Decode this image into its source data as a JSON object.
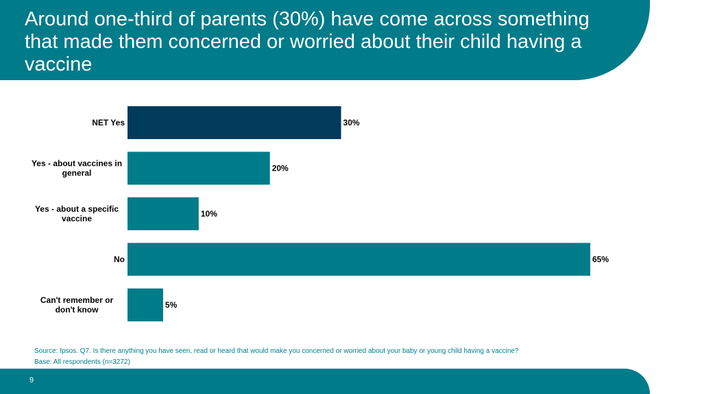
{
  "title": "Around one-third of parents (30%) have come across something that made them concerned or worried about their child having a vaccine",
  "colors": {
    "header": "#007b8a",
    "highlight_bar": "#003b5c",
    "bar": "#007b8a",
    "source_text": "#007b8a"
  },
  "chart_data": {
    "type": "bar",
    "orientation": "horizontal",
    "categories": [
      [
        "NET Yes"
      ],
      [
        "Yes - about vaccines in",
        "general"
      ],
      [
        "Yes - about a specific",
        "vaccine"
      ],
      [
        "No"
      ],
      [
        "Can't remember or",
        "don't know"
      ]
    ],
    "values": [
      30,
      20,
      10,
      65,
      5
    ],
    "value_labels": [
      "30%",
      "20%",
      "10%",
      "65%",
      "5%"
    ],
    "highlight_index": 0,
    "xlim": [
      0,
      65
    ],
    "grid": false,
    "legend": "none"
  },
  "source": {
    "line1": "Source: Ipsos. Q7. Is there anything you have seen, read or heard that would make you concerned or worried about your baby or young child having a vaccine?",
    "line2": "Base: All respondents (n=3272)"
  },
  "page_number": "9"
}
